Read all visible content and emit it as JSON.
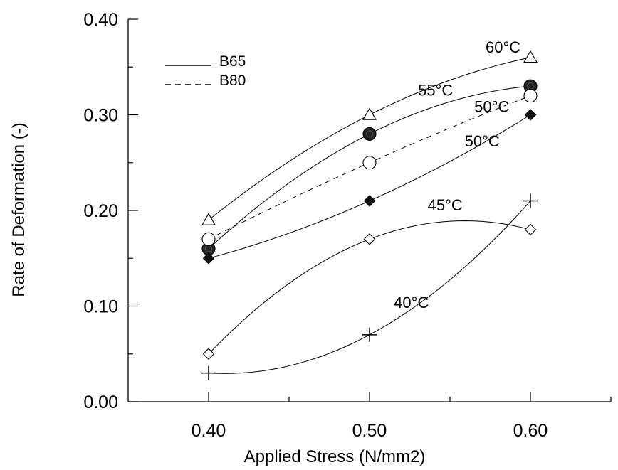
{
  "chart_data": {
    "type": "line",
    "title": "",
    "xlabel": "Applied Stress (N/mm2)",
    "ylabel": "Rate of Deformation (-)",
    "xlim": [
      0.35,
      0.65
    ],
    "ylim": [
      0.0,
      0.4
    ],
    "x": [
      0.4,
      0.5,
      0.6
    ],
    "x_tick_labels": [
      "0.40",
      "0.50",
      "0.60"
    ],
    "y_tick_labels": [
      "0.00",
      "0.10",
      "0.20",
      "0.30",
      "0.40"
    ],
    "y_ticks": [
      0.0,
      0.1,
      0.2,
      0.3,
      0.4
    ],
    "x_ticks": [
      0.4,
      0.5,
      0.6
    ],
    "grid": false,
    "legend_position": "top-left",
    "legend": [
      {
        "label": "B65",
        "style": "solid"
      },
      {
        "label": "B80",
        "style": "dashed"
      }
    ],
    "series": [
      {
        "label": "60°C",
        "group": "B65",
        "marker": "open-triangle",
        "values": [
          0.19,
          0.3,
          0.36
        ]
      },
      {
        "label": "55°C",
        "group": "B65",
        "marker": "filled-circle",
        "values": [
          0.16,
          0.28,
          0.33
        ]
      },
      {
        "label": "50°C",
        "group": "B80",
        "marker": "open-circle",
        "values": [
          0.17,
          0.25,
          0.32
        ]
      },
      {
        "label": "50°C",
        "group": "B65",
        "marker": "filled-diamond",
        "values": [
          0.15,
          0.21,
          0.3
        ]
      },
      {
        "label": "45°C",
        "group": "B65",
        "marker": "open-diamond",
        "values": [
          0.05,
          0.17,
          0.18
        ]
      },
      {
        "label": "40°C",
        "group": "B65",
        "marker": "plus",
        "values": [
          0.03,
          0.07,
          0.21
        ]
      }
    ]
  }
}
